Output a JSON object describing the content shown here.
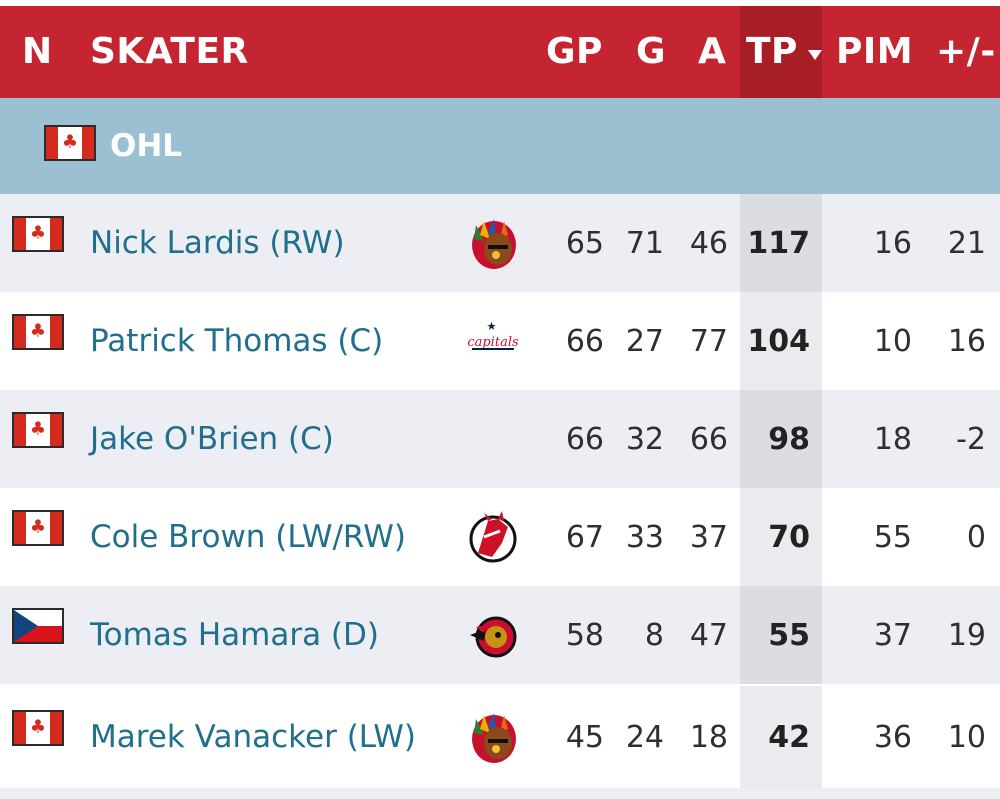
{
  "header": {
    "col_n": "N",
    "col_skater": "SKATER",
    "col_gp": "GP",
    "col_g": "G",
    "col_a": "A",
    "col_tp": "TP",
    "col_pim": "PIM",
    "col_pm": "+/-",
    "sorted_column": "TP",
    "sort_icon": "sort-descending-icon"
  },
  "group": {
    "label": "OHL",
    "flag": "canada-flag-icon"
  },
  "colors": {
    "header_bg": "#c42530",
    "group_bg": "#9bc0d1",
    "player_link": "#1f6f8d",
    "row_alt_bg": "#eceef3"
  },
  "rows": [
    {
      "flag": "canada-flag-icon",
      "name": "Nick Lardis (RW)",
      "team_logo": "chicago-blackhawks-logo",
      "gp": "65",
      "g": "71",
      "a": "46",
      "tp": "117",
      "pim": "16",
      "pm": "21"
    },
    {
      "flag": "canada-flag-icon",
      "name": "Patrick Thomas (C)",
      "team_logo": "washington-capitals-logo",
      "logo_text": "capitals",
      "gp": "66",
      "g": "27",
      "a": "77",
      "tp": "104",
      "pim": "10",
      "pm": "16"
    },
    {
      "flag": "canada-flag-icon",
      "name": "Jake O'Brien (C)",
      "team_logo": "",
      "gp": "66",
      "g": "32",
      "a": "66",
      "tp": "98",
      "pim": "18",
      "pm": "-2"
    },
    {
      "flag": "canada-flag-icon",
      "name": "Cole Brown (LW/RW)",
      "team_logo": "new-jersey-devils-logo",
      "gp": "67",
      "g": "33",
      "a": "37",
      "tp": "70",
      "pim": "55",
      "pm": "0"
    },
    {
      "flag": "czech-flag-icon",
      "name": "Tomas Hamara (D)",
      "team_logo": "ottawa-senators-logo",
      "gp": "58",
      "g": "8",
      "a": "47",
      "tp": "55",
      "pim": "37",
      "pm": "19"
    },
    {
      "flag": "canada-flag-icon",
      "name": "Marek Vanacker (LW)",
      "team_logo": "chicago-blackhawks-logo",
      "gp": "45",
      "g": "24",
      "a": "18",
      "tp": "42",
      "pim": "36",
      "pm": "10"
    }
  ]
}
